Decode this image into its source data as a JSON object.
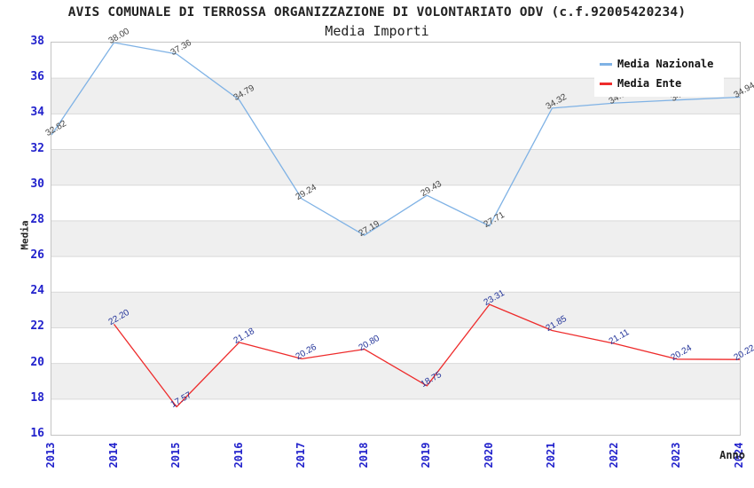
{
  "chart_data": {
    "type": "line",
    "title": "AVIS COMUNALE DI TERROSSA ORGANIZZAZIONE DI VOLONTARIATO ODV (c.f.92005420234)",
    "subtitle": "Media Importi",
    "xlabel": "Anno",
    "ylabel": "Media",
    "x": [
      "2013",
      "2014",
      "2015",
      "2016",
      "2017",
      "2018",
      "2019",
      "2020",
      "2021",
      "2022",
      "2023",
      "2024"
    ],
    "ylim": [
      16,
      38
    ],
    "y_ticks": [
      38,
      36,
      34,
      32,
      30,
      28,
      26,
      24,
      22,
      20,
      18,
      16
    ],
    "grid": "horizontal-gridlines-with-alternating-bands",
    "legend_position": "top-right",
    "series": [
      {
        "name": "Media Nazionale",
        "color": "#7FB2E5",
        "label_color": "#444444",
        "values": [
          32.82,
          38.0,
          37.36,
          34.79,
          29.24,
          27.19,
          29.43,
          27.71,
          34.32,
          34.61,
          34.78,
          34.94
        ]
      },
      {
        "name": "Media Ente",
        "color": "#EE2B2B",
        "label_color": "#223399",
        "values": [
          null,
          22.2,
          17.57,
          21.18,
          20.26,
          20.8,
          18.75,
          23.31,
          21.85,
          21.11,
          20.24,
          20.22
        ]
      }
    ],
    "styles": {
      "band_fill": "#EFEFEF",
      "grid_color": "#D9D9D9",
      "tick_label_color": "#2222CC",
      "plot_border_color": "#C4C4C4",
      "background": "#FFFFFF"
    }
  }
}
